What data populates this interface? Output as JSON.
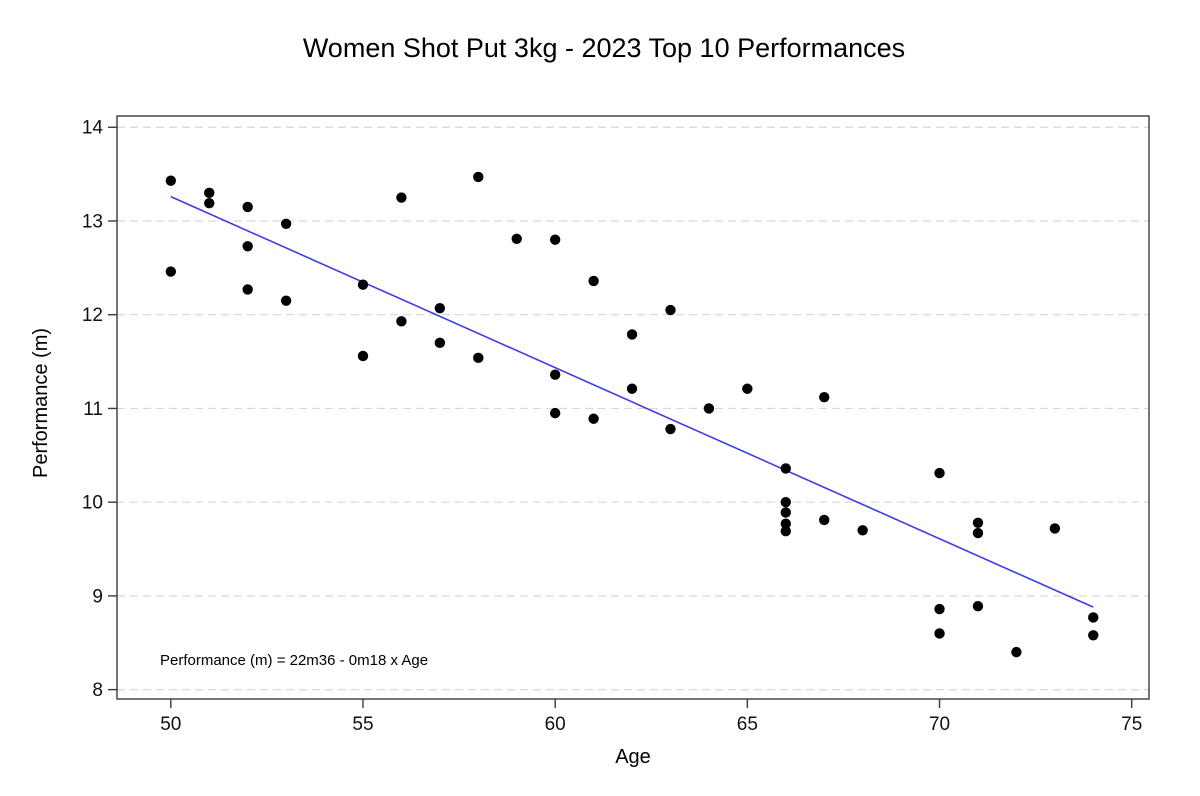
{
  "page": {
    "background": "#ffffff"
  },
  "chart_data": {
    "type": "scatter",
    "title": "Women Shot Put 3kg - 2023 Top 10 Performances",
    "xlabel": "Age",
    "ylabel": "Performance (m)",
    "annotation": "Performance (m) =  22m36 - 0m18 x Age",
    "x_ticks": [
      50,
      55,
      60,
      65,
      70,
      75
    ],
    "y_ticks": [
      8,
      9,
      10,
      11,
      12,
      13,
      14
    ],
    "xlim": [
      48.6,
      75.45
    ],
    "ylim": [
      7.9,
      14.12
    ],
    "grid": "horizontal-dashed",
    "legend": "none",
    "points": [
      [
        50,
        13.43
      ],
      [
        50,
        12.46
      ],
      [
        51,
        13.3
      ],
      [
        51,
        13.19
      ],
      [
        52,
        13.15
      ],
      [
        52,
        12.73
      ],
      [
        52,
        12.27
      ],
      [
        53,
        12.97
      ],
      [
        53,
        12.15
      ],
      [
        55,
        12.32
      ],
      [
        55,
        11.56
      ],
      [
        56,
        13.25
      ],
      [
        56,
        11.93
      ],
      [
        57,
        12.07
      ],
      [
        57,
        11.7
      ],
      [
        58,
        13.47
      ],
      [
        58,
        11.54
      ],
      [
        59,
        12.81
      ],
      [
        60,
        12.8
      ],
      [
        60,
        11.36
      ],
      [
        60,
        10.95
      ],
      [
        61,
        12.36
      ],
      [
        61,
        10.89
      ],
      [
        62,
        11.79
      ],
      [
        62,
        11.21
      ],
      [
        63,
        12.05
      ],
      [
        63,
        10.78
      ],
      [
        64,
        11.0
      ],
      [
        65,
        11.21
      ],
      [
        66,
        10.36
      ],
      [
        66,
        10.0
      ],
      [
        66,
        9.89
      ],
      [
        66,
        9.77
      ],
      [
        66,
        9.69
      ],
      [
        67,
        11.12
      ],
      [
        67,
        9.81
      ],
      [
        68,
        9.7
      ],
      [
        70,
        10.31
      ],
      [
        70,
        8.86
      ],
      [
        70,
        8.6
      ],
      [
        71,
        9.78
      ],
      [
        71,
        9.67
      ],
      [
        71,
        8.89
      ],
      [
        72,
        8.4
      ],
      [
        73,
        9.72
      ],
      [
        74,
        8.77
      ],
      [
        74,
        8.58
      ]
    ],
    "trendline": {
      "x_start": 50,
      "y_start": 13.26,
      "x_end": 74,
      "y_end": 8.88,
      "slope": -0.18,
      "intercept": 22.36
    },
    "colors": {
      "point": "#000000",
      "trendline": "#3d3de8",
      "grid": "#d8d8d8",
      "axis": "#3a3a3a",
      "text": "#000000"
    }
  }
}
